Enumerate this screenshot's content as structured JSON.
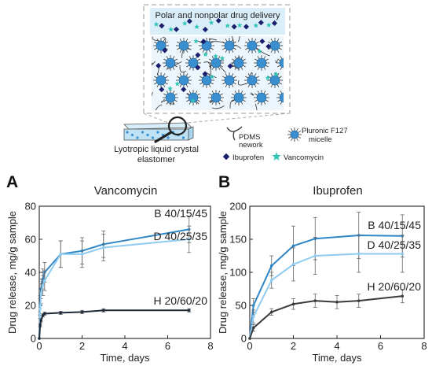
{
  "schematic": {
    "banner_title": "Polar and nonpolar drug delivery",
    "caption_line1": "Lyotropic liquid crystal",
    "caption_line2": "elastomer",
    "legend": {
      "pdms_line1": "PDMS",
      "pdms_line2": "nework",
      "pluronic_line1": "Pluronic F127",
      "pluronic_line2": "micelle",
      "ibuprofen": "Ibuprofen",
      "vancomycin": "Vancomycin"
    },
    "colors": {
      "micelle": "#3a8fd0",
      "ibuprofen_marker": "#1a1f6e",
      "vancomycin_marker": "#2ec4b6",
      "network": "#444444",
      "elastomer_bar": "#bfe3f5"
    }
  },
  "chart_data": [
    {
      "panel": "A",
      "type": "line",
      "title": "Vancomycin",
      "xlabel": "Time, days",
      "ylabel": "Drug release, mg/g sample",
      "xlim": [
        0,
        8
      ],
      "ylim": [
        0,
        80
      ],
      "xticks": [
        0,
        2,
        4,
        6,
        8
      ],
      "yticks": [
        0,
        20,
        40,
        60,
        80
      ],
      "grid": false,
      "series": [
        {
          "name": "B 40/15/45",
          "color": "#2f86c6",
          "x": [
            0,
            0.04,
            0.08,
            0.17,
            0.25,
            1,
            2,
            3,
            7
          ],
          "y": [
            0,
            20,
            30,
            36,
            40,
            51,
            53,
            57,
            66
          ],
          "err": [
            0,
            6,
            6,
            6,
            6,
            8,
            8,
            8,
            8
          ]
        },
        {
          "name": "D 40/25/35",
          "color": "#8fcbf0",
          "x": [
            0,
            0.04,
            0.08,
            0.17,
            0.25,
            1,
            2,
            3,
            7
          ],
          "y": [
            0,
            18,
            27,
            32,
            35,
            51,
            51,
            55,
            60
          ],
          "err": [
            0,
            6,
            6,
            6,
            6,
            8,
            8,
            8,
            8
          ]
        },
        {
          "name": "H 20/60/20",
          "color": "#1b2a38",
          "x": [
            0,
            0.04,
            0.08,
            0.17,
            0.25,
            1,
            2,
            3,
            7
          ],
          "y": [
            0,
            8,
            11,
            14,
            15,
            15.5,
            16,
            17,
            17
          ],
          "err": [
            0,
            1,
            1,
            1,
            1,
            1,
            1,
            1,
            1
          ]
        }
      ]
    },
    {
      "panel": "B",
      "type": "line",
      "title": "Ibuprofen",
      "xlabel": "Time, days",
      "ylabel": "Drug release, mg/g sample",
      "xlim": [
        0,
        8
      ],
      "ylim": [
        0,
        200
      ],
      "xticks": [
        0,
        2,
        4,
        6,
        8
      ],
      "yticks": [
        0,
        50,
        100,
        150,
        200
      ],
      "grid": false,
      "series": [
        {
          "name": "B 40/15/45",
          "color": "#2f86c6",
          "x": [
            0,
            0.17,
            1,
            2,
            3,
            5,
            7
          ],
          "y": [
            0,
            50,
            110,
            140,
            151,
            156,
            155
          ],
          "err": [
            0,
            10,
            15,
            30,
            32,
            35,
            32
          ]
        },
        {
          "name": "D 40/25/35",
          "color": "#8fcbf0",
          "x": [
            0,
            0.17,
            1,
            2,
            3,
            5,
            7
          ],
          "y": [
            0,
            33,
            88,
            112,
            125,
            128,
            128
          ],
          "err": [
            0,
            10,
            12,
            25,
            28,
            28,
            28
          ]
        },
        {
          "name": "H 20/60/20",
          "color": "#3a3a3a",
          "x": [
            0,
            0.17,
            1,
            2,
            3,
            4,
            5,
            7
          ],
          "y": [
            0,
            16,
            40,
            52,
            57,
            55,
            57,
            64
          ],
          "err": [
            0,
            5,
            5,
            8,
            10,
            10,
            10,
            10
          ]
        }
      ]
    }
  ]
}
